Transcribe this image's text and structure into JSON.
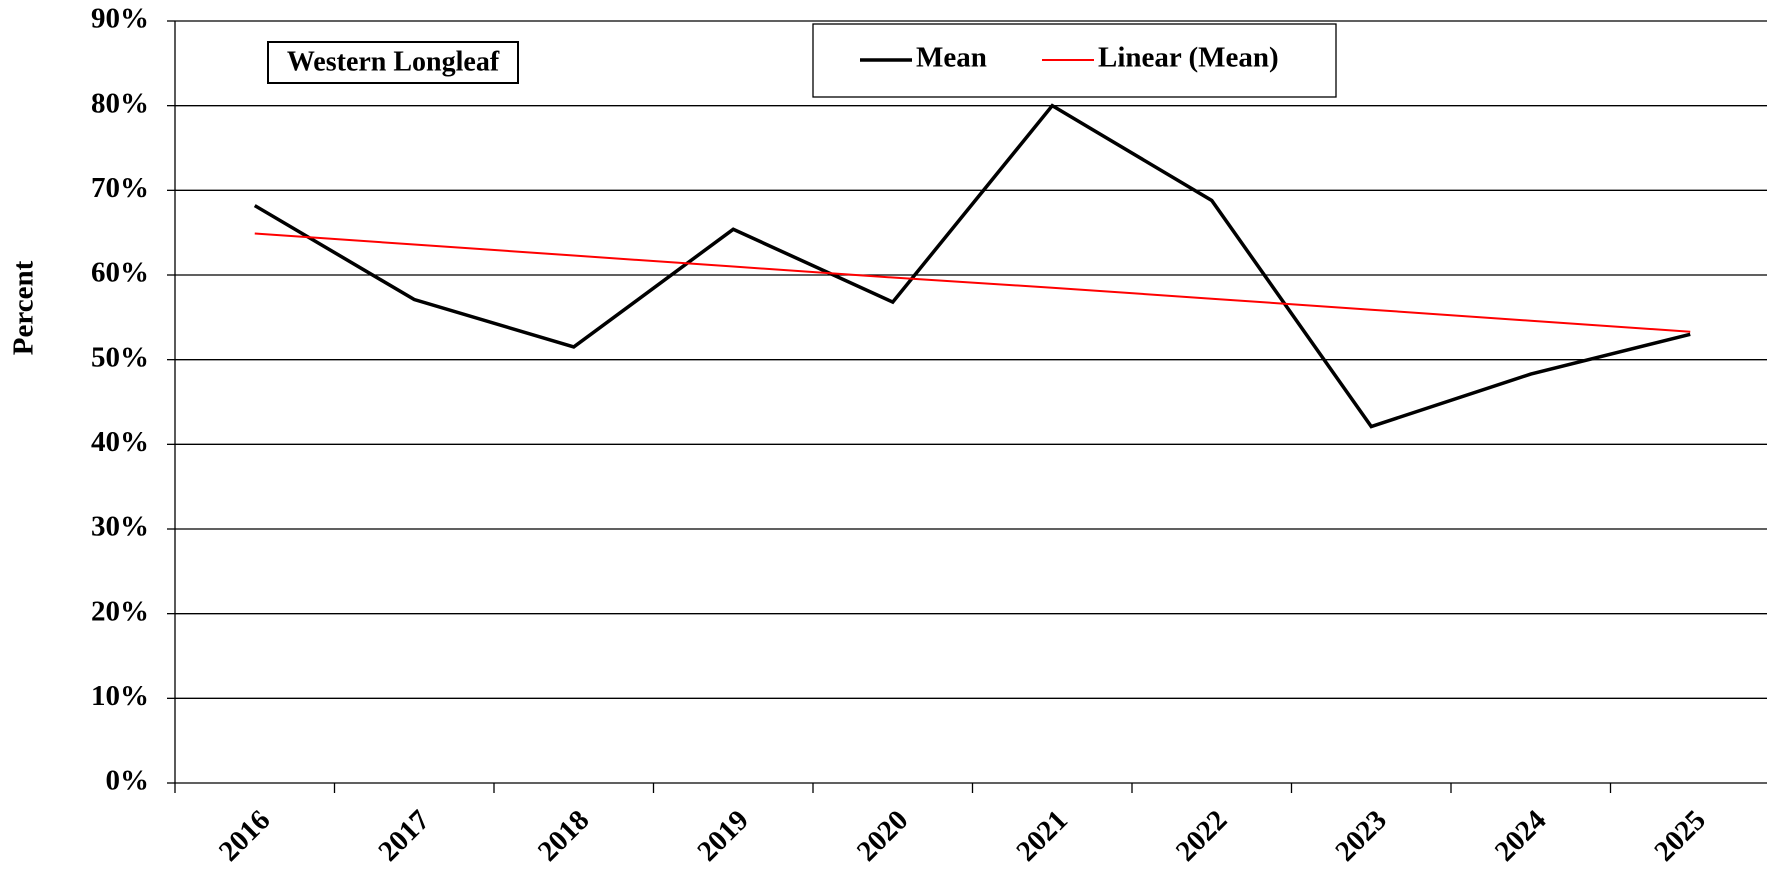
{
  "chart_data": {
    "type": "line",
    "annotation": "Western Longleaf",
    "y_label": "Percent",
    "categories": [
      "2016",
      "2017",
      "2018",
      "2019",
      "2020",
      "2021",
      "2022",
      "2023",
      "2024",
      "2025"
    ],
    "series": [
      {
        "name": "Mean",
        "color": "#000000",
        "values": [
          68.2,
          57.1,
          51.5,
          65.4,
          56.8,
          80.0,
          68.8,
          42.1,
          48.3,
          53.0
        ]
      },
      {
        "name": "Linear (Mean)",
        "color": "#ff0000",
        "values": [
          64.9,
          63.6,
          62.3,
          61.0,
          59.7,
          58.5,
          57.2,
          55.9,
          54.6,
          53.3
        ]
      }
    ],
    "ylim": [
      0,
      90
    ],
    "yticks": [
      {
        "value": 0,
        "label": "0%"
      },
      {
        "value": 10,
        "label": "10%"
      },
      {
        "value": 20,
        "label": "20%"
      },
      {
        "value": 30,
        "label": "30%"
      },
      {
        "value": 40,
        "label": "40%"
      },
      {
        "value": 50,
        "label": "50%"
      },
      {
        "value": 60,
        "label": "60%"
      },
      {
        "value": 70,
        "label": "70%"
      },
      {
        "value": 80,
        "label": "80%"
      },
      {
        "value": 90,
        "label": "90%"
      }
    ],
    "grid": true
  }
}
